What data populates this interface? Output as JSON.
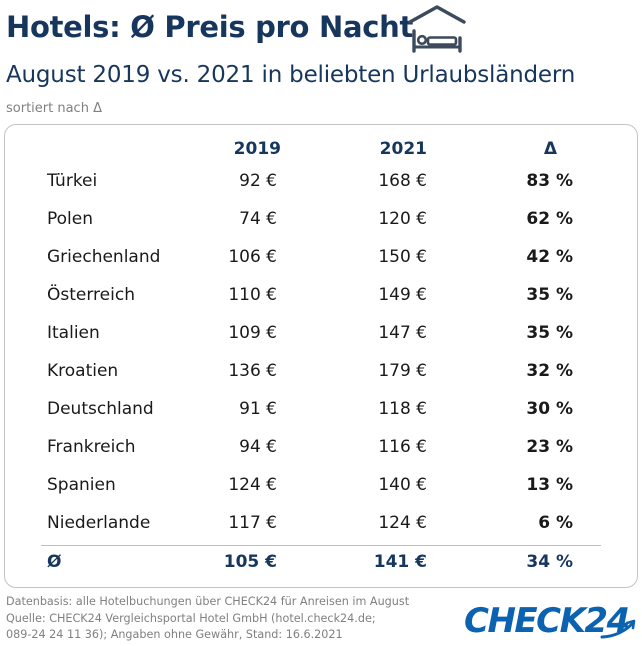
{
  "header": {
    "title": "Hotels: Ø Preis pro Nacht",
    "subtitle": "August 2019 vs. 2021 in beliebten Urlaubsländern",
    "sort_note": "sortiert nach Δ",
    "icon": "hotel-bed-icon"
  },
  "table": {
    "columns": [
      "",
      "2019",
      "2021",
      "Δ"
    ],
    "rows": [
      {
        "country": "Türkei",
        "y2019": "92 €",
        "y2021": "168 €",
        "delta": "83 %"
      },
      {
        "country": "Polen",
        "y2019": "74 €",
        "y2021": "120 €",
        "delta": "62 %"
      },
      {
        "country": "Griechenland",
        "y2019": "106 €",
        "y2021": "150 €",
        "delta": "42 %"
      },
      {
        "country": "Österreich",
        "y2019": "110 €",
        "y2021": "149 €",
        "delta": "35 %"
      },
      {
        "country": "Italien",
        "y2019": "109 €",
        "y2021": "147 €",
        "delta": "35 %"
      },
      {
        "country": "Kroatien",
        "y2019": "136 €",
        "y2021": "179 €",
        "delta": "32 %"
      },
      {
        "country": "Deutschland",
        "y2019": "91 €",
        "y2021": "118 €",
        "delta": "30 %"
      },
      {
        "country": "Frankreich",
        "y2019": "94 €",
        "y2021": "116 €",
        "delta": "23 %"
      },
      {
        "country": "Spanien",
        "y2019": "124 €",
        "y2021": "140 €",
        "delta": "13 %"
      },
      {
        "country": "Niederlande",
        "y2019": "117 €",
        "y2021": "124 €",
        "delta": "6 %"
      }
    ],
    "average": {
      "label": "Ø",
      "y2019": "105 €",
      "y2021": "141 €",
      "delta": "34 %"
    }
  },
  "footer": {
    "lines": [
      "Datenbasis: alle Hotelbuchungen über CHECK24 für Anreisen im August",
      "Quelle: CHECK24 Vergleichsportal Hotel GmbH (hotel.check24.de;",
      "089-24 24 11 36); Angaben ohne Gewähr, Stand: 16.6.2021"
    ]
  },
  "logo": {
    "text": "CHECK24"
  },
  "colors": {
    "navy": "#17365d",
    "logo_blue": "#0b62b0",
    "grey_text": "#808080",
    "border": "#c4c4c4"
  }
}
